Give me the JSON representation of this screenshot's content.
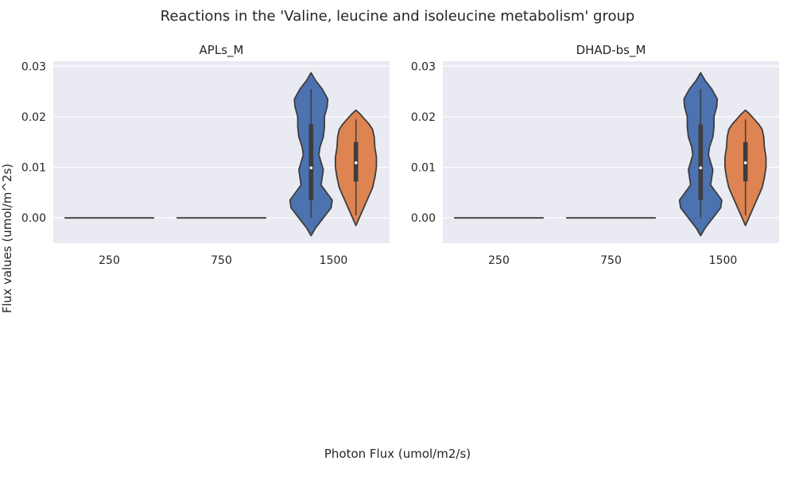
{
  "figure": {
    "title": "Reactions in the 'Valine, leucine and isoleucine metabolism' group",
    "xlabel": "Photon Flux (umol/m2/s)",
    "ylabel": "Flux values (umol/m^2s)"
  },
  "colors": {
    "background": "#eaeaf2",
    "grid": "#ffffff",
    "series_a": "#4c72b0",
    "series_b": "#dd8452",
    "line": "#3d3d3d"
  },
  "chart_data": [
    {
      "type": "violin",
      "title": "APLs_M",
      "categories": [
        "250",
        "750",
        "1500"
      ],
      "ylim": [
        -0.005,
        0.031
      ],
      "yticks": [
        0.0,
        0.01,
        0.02,
        0.03
      ],
      "ytick_labels": [
        "0.00",
        "0.01",
        "0.02",
        "0.03"
      ],
      "grid": true,
      "violins": [
        {
          "category": "250",
          "series": 0,
          "min": 0,
          "max": 0,
          "q1": 0,
          "median": 0,
          "q3": 0
        },
        {
          "category": "750",
          "series": 0,
          "min": 0,
          "max": 0,
          "q1": 0,
          "median": 0,
          "q3": 0
        },
        {
          "category": "1500",
          "series": 0,
          "min": 0.0,
          "max": 0.0255,
          "q1": 0.0035,
          "median": 0.0099,
          "q3": 0.0185,
          "kde_min": -0.0035,
          "kde_max": 0.0287,
          "profile": [
            [
              -0.0035,
              0.0
            ],
            [
              -0.002,
              0.2
            ],
            [
              0.0,
              0.55
            ],
            [
              0.002,
              0.9
            ],
            [
              0.0035,
              0.95
            ],
            [
              0.005,
              0.7
            ],
            [
              0.0065,
              0.45
            ],
            [
              0.008,
              0.5
            ],
            [
              0.0095,
              0.55
            ],
            [
              0.011,
              0.45
            ],
            [
              0.0125,
              0.35
            ],
            [
              0.014,
              0.4
            ],
            [
              0.016,
              0.55
            ],
            [
              0.018,
              0.6
            ],
            [
              0.02,
              0.6
            ],
            [
              0.022,
              0.72
            ],
            [
              0.0235,
              0.75
            ],
            [
              0.0255,
              0.5
            ],
            [
              0.0272,
              0.2
            ],
            [
              0.0287,
              0.0
            ]
          ]
        },
        {
          "category": "1500",
          "series": 1,
          "min": 0.0005,
          "max": 0.0195,
          "q1": 0.0072,
          "median": 0.0109,
          "q3": 0.015,
          "kde_min": -0.0015,
          "kde_max": 0.0213,
          "profile": [
            [
              -0.0015,
              0.0
            ],
            [
              0.0,
              0.15
            ],
            [
              0.002,
              0.35
            ],
            [
              0.004,
              0.55
            ],
            [
              0.006,
              0.75
            ],
            [
              0.008,
              0.85
            ],
            [
              0.01,
              0.92
            ],
            [
              0.012,
              0.92
            ],
            [
              0.014,
              0.85
            ],
            [
              0.016,
              0.82
            ],
            [
              0.0175,
              0.75
            ],
            [
              0.0185,
              0.6
            ],
            [
              0.0195,
              0.4
            ],
            [
              0.0205,
              0.2
            ],
            [
              0.0213,
              0.0
            ]
          ]
        }
      ]
    },
    {
      "type": "violin",
      "title": "DHAD-bs_M",
      "categories": [
        "250",
        "750",
        "1500"
      ],
      "ylim": [
        -0.005,
        0.031
      ],
      "yticks": [
        0.0,
        0.01,
        0.02,
        0.03
      ],
      "ytick_labels": [
        "0.00",
        "0.01",
        "0.02",
        "0.03"
      ],
      "grid": true,
      "violins": [
        {
          "category": "250",
          "series": 0,
          "min": 0,
          "max": 0,
          "q1": 0,
          "median": 0,
          "q3": 0
        },
        {
          "category": "750",
          "series": 0,
          "min": 0,
          "max": 0,
          "q1": 0,
          "median": 0,
          "q3": 0
        },
        {
          "category": "1500",
          "series": 0,
          "min": 0.0,
          "max": 0.0255,
          "q1": 0.0035,
          "median": 0.0099,
          "q3": 0.0185,
          "kde_min": -0.0035,
          "kde_max": 0.0287,
          "profile": [
            [
              -0.0035,
              0.0
            ],
            [
              -0.002,
              0.2
            ],
            [
              0.0,
              0.55
            ],
            [
              0.002,
              0.9
            ],
            [
              0.0035,
              0.95
            ],
            [
              0.005,
              0.7
            ],
            [
              0.0065,
              0.45
            ],
            [
              0.008,
              0.5
            ],
            [
              0.0095,
              0.55
            ],
            [
              0.011,
              0.45
            ],
            [
              0.0125,
              0.35
            ],
            [
              0.014,
              0.4
            ],
            [
              0.016,
              0.55
            ],
            [
              0.018,
              0.6
            ],
            [
              0.02,
              0.6
            ],
            [
              0.022,
              0.72
            ],
            [
              0.0235,
              0.75
            ],
            [
              0.0255,
              0.5
            ],
            [
              0.0272,
              0.2
            ],
            [
              0.0287,
              0.0
            ]
          ]
        },
        {
          "category": "1500",
          "series": 1,
          "min": 0.0005,
          "max": 0.0195,
          "q1": 0.0072,
          "median": 0.0109,
          "q3": 0.015,
          "kde_min": -0.0015,
          "kde_max": 0.0213,
          "profile": [
            [
              -0.0015,
              0.0
            ],
            [
              0.0,
              0.15
            ],
            [
              0.002,
              0.35
            ],
            [
              0.004,
              0.55
            ],
            [
              0.006,
              0.75
            ],
            [
              0.008,
              0.85
            ],
            [
              0.01,
              0.92
            ],
            [
              0.012,
              0.92
            ],
            [
              0.014,
              0.85
            ],
            [
              0.016,
              0.82
            ],
            [
              0.0175,
              0.75
            ],
            [
              0.0185,
              0.6
            ],
            [
              0.0195,
              0.4
            ],
            [
              0.0205,
              0.2
            ],
            [
              0.0213,
              0.0
            ]
          ]
        }
      ]
    }
  ]
}
